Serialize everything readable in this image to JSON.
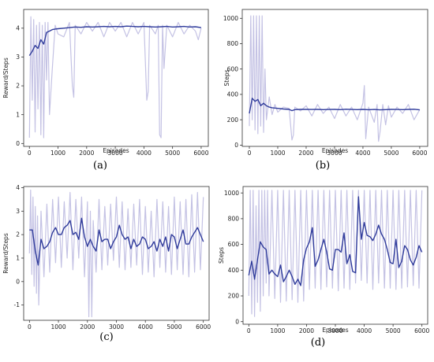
{
  "colors": {
    "raw": "#c4c2e4",
    "smooth": "#2f3b9b",
    "axis": "#333333",
    "text": "#222222"
  },
  "chart_data": [
    {
      "type": "line",
      "caption": "(a)",
      "xlabel": "Episodes",
      "ylabel": "Reward/Steps",
      "xlim": [
        -200,
        6250
      ],
      "ylim": [
        -0.1,
        4.65
      ],
      "xticks": [
        0,
        1000,
        2000,
        3000,
        4000,
        5000,
        6000
      ],
      "yticks": [
        0,
        1,
        2,
        3,
        4
      ],
      "series": [
        {
          "role": "smoothed",
          "x": [
            0,
            100,
            200,
            300,
            400,
            500,
            600,
            700,
            800,
            900,
            1000,
            1200,
            1400,
            1600,
            1800,
            2000,
            2200,
            2400,
            2600,
            2800,
            3000,
            3200,
            3400,
            3600,
            3800,
            4000,
            4200,
            4400,
            4600,
            4800,
            5000,
            5200,
            5400,
            5600,
            5800,
            6000
          ],
          "y": [
            3.05,
            3.2,
            3.4,
            3.3,
            3.6,
            3.45,
            3.85,
            3.9,
            3.95,
            3.97,
            3.98,
            4.0,
            4.02,
            4.04,
            4.03,
            4.05,
            4.04,
            4.05,
            4.06,
            4.05,
            4.06,
            4.05,
            4.07,
            4.06,
            4.05,
            4.06,
            4.05,
            4.04,
            4.05,
            4.06,
            4.04,
            4.05,
            4.06,
            4.04,
            4.05,
            4.02
          ]
        },
        {
          "role": "raw",
          "x": [
            0,
            50,
            100,
            150,
            200,
            250,
            300,
            350,
            400,
            450,
            500,
            550,
            600,
            650,
            700,
            800,
            900,
            1000,
            1200,
            1400,
            1500,
            1550,
            1600,
            1800,
            2000,
            2200,
            2400,
            2600,
            2800,
            3000,
            3200,
            3400,
            3600,
            3800,
            4000,
            4100,
            4150,
            4200,
            4400,
            4500,
            4550,
            4600,
            4650,
            4700,
            4800,
            5000,
            5200,
            5400,
            5600,
            5800,
            5900,
            6000
          ],
          "y": [
            0.2,
            4.4,
            1.5,
            4.3,
            0.4,
            4.1,
            1.2,
            4.2,
            0.3,
            4.1,
            0.2,
            4.2,
            2.2,
            4.2,
            1.0,
            2.6,
            4.1,
            3.8,
            3.7,
            4.2,
            2.0,
            1.6,
            4.1,
            3.8,
            4.2,
            3.9,
            4.2,
            3.7,
            4.2,
            3.9,
            4.2,
            3.7,
            4.2,
            3.8,
            4.2,
            1.5,
            1.8,
            4.1,
            3.8,
            4.1,
            0.3,
            0.2,
            4.1,
            2.6,
            4.1,
            3.7,
            4.2,
            3.8,
            4.1,
            3.9,
            3.6,
            4.0
          ]
        }
      ]
    },
    {
      "type": "line",
      "caption": "(b)",
      "xlabel": "Episodes",
      "ylabel": "Steps",
      "xlim": [
        -250,
        6280
      ],
      "ylim": [
        -10,
        1070
      ],
      "xticks": [
        0,
        1000,
        2000,
        3000,
        4000,
        5000,
        6000
      ],
      "yticks": [
        0,
        200,
        400,
        600,
        800,
        1000
      ],
      "series": [
        {
          "role": "smoothed",
          "x": [
            0,
            100,
            200,
            300,
            400,
            500,
            600,
            700,
            800,
            900,
            1000,
            1200,
            1400,
            1500,
            1600,
            1800,
            2000,
            2200,
            2400,
            2600,
            2800,
            3000,
            3200,
            3400,
            3600,
            3800,
            4000,
            4200,
            4400,
            4600,
            4800,
            5000,
            5200,
            5400,
            5600,
            5800,
            6000
          ],
          "y": [
            250,
            370,
            345,
            360,
            310,
            330,
            310,
            300,
            295,
            292,
            290,
            285,
            282,
            272,
            280,
            282,
            282,
            281,
            282,
            280,
            281,
            282,
            280,
            283,
            281,
            280,
            282,
            279,
            281,
            278,
            280,
            282,
            281,
            280,
            282,
            283,
            278
          ]
        },
        {
          "role": "raw",
          "x": [
            0,
            50,
            100,
            150,
            200,
            250,
            300,
            350,
            400,
            450,
            500,
            550,
            600,
            700,
            800,
            900,
            1000,
            1200,
            1400,
            1500,
            1550,
            1600,
            1800,
            2000,
            2200,
            2400,
            2600,
            2800,
            3000,
            3200,
            3400,
            3600,
            3800,
            4000,
            4050,
            4100,
            4200,
            4400,
            4500,
            4550,
            4600,
            4700,
            4800,
            4900,
            5000,
            5200,
            5400,
            5600,
            5800,
            6000
          ],
          "y": [
            150,
            1020,
            200,
            1020,
            120,
            1020,
            90,
            1020,
            150,
            1020,
            100,
            600,
            200,
            380,
            240,
            320,
            260,
            300,
            290,
            40,
            80,
            300,
            270,
            310,
            230,
            320,
            250,
            300,
            210,
            320,
            230,
            300,
            200,
            330,
            470,
            50,
            300,
            180,
            320,
            30,
            100,
            320,
            160,
            310,
            220,
            300,
            250,
            320,
            200,
            280
          ]
        }
      ]
    },
    {
      "type": "line",
      "caption": "(c)",
      "xlabel": "",
      "ylabel": "Reward/Steps",
      "xlim": [
        -200,
        6200
      ],
      "ylim": [
        -1.65,
        4.05
      ],
      "xticks": [
        0,
        1000,
        2000,
        3000,
        4000,
        5000,
        6000
      ],
      "yticks": [
        -1,
        0,
        1,
        2,
        3,
        4
      ],
      "series": [
        {
          "role": "smoothed",
          "x": [
            0,
            100,
            200,
            300,
            400,
            500,
            600,
            700,
            800,
            900,
            1000,
            1100,
            1200,
            1300,
            1400,
            1500,
            1600,
            1700,
            1800,
            1900,
            2000,
            2100,
            2200,
            2300,
            2400,
            2500,
            2600,
            2700,
            2800,
            2900,
            3000,
            3100,
            3200,
            3300,
            3400,
            3500,
            3600,
            3700,
            3800,
            3900,
            4000,
            4100,
            4200,
            4300,
            4400,
            4500,
            4600,
            4700,
            4800,
            4900,
            5000,
            5100,
            5200,
            5300,
            5400,
            5500,
            5600,
            5700,
            5800,
            5900,
            6000
          ],
          "y": [
            2.2,
            2.2,
            1.3,
            0.7,
            1.8,
            1.4,
            1.5,
            1.7,
            2.1,
            2.3,
            2.0,
            2.0,
            2.3,
            2.4,
            2.6,
            2.0,
            2.1,
            1.8,
            2.7,
            1.9,
            1.5,
            1.8,
            1.5,
            1.3,
            2.2,
            1.7,
            1.8,
            1.8,
            1.4,
            1.7,
            1.9,
            2.4,
            2.0,
            1.8,
            1.9,
            1.4,
            1.8,
            1.5,
            1.6,
            1.9,
            1.8,
            1.4,
            1.5,
            1.7,
            1.3,
            1.8,
            1.5,
            1.9,
            1.3,
            2.0,
            1.9,
            1.4,
            1.8,
            2.2,
            1.6,
            1.6,
            1.9,
            2.1,
            2.3,
            2.0,
            1.7
          ]
        },
        {
          "role": "raw",
          "x": [
            0,
            40,
            80,
            120,
            160,
            200,
            240,
            280,
            320,
            400,
            500,
            600,
            700,
            800,
            900,
            1000,
            1100,
            1200,
            1300,
            1400,
            1500,
            1600,
            1700,
            1800,
            1900,
            2000,
            2050,
            2100,
            2150,
            2200,
            2300,
            2400,
            2500,
            2600,
            2700,
            2800,
            2900,
            3000,
            3100,
            3200,
            3300,
            3400,
            3500,
            3600,
            3700,
            3800,
            3900,
            4000,
            4100,
            4200,
            4300,
            4400,
            4500,
            4600,
            4700,
            4800,
            4900,
            5000,
            5100,
            5200,
            5300,
            5400,
            5500,
            5600,
            5700,
            5800,
            5900,
            6000
          ],
          "y": [
            1.2,
            3.9,
            0.3,
            3.6,
            -0.2,
            3.2,
            -0.5,
            2.8,
            -1.0,
            3.0,
            0.2,
            3.3,
            0.4,
            3.5,
            0.8,
            3.6,
            0.6,
            3.4,
            1.0,
            3.8,
            0.5,
            3.5,
            1.0,
            3.6,
            0.2,
            3.4,
            -1.5,
            3.0,
            -1.5,
            2.6,
            0.4,
            3.5,
            0.5,
            3.2,
            0.7,
            3.3,
            0.9,
            3.6,
            0.6,
            3.4,
            0.5,
            3.1,
            0.6,
            3.3,
            0.7,
            3.5,
            0.3,
            3.2,
            0.4,
            3.0,
            0.2,
            3.5,
            0.6,
            3.4,
            0.4,
            3.2,
            0.3,
            3.6,
            0.5,
            3.4,
            0.3,
            3.5,
            0.2,
            3.7,
            0.4,
            3.8,
            0.5,
            3.6
          ]
        }
      ]
    },
    {
      "type": "line",
      "caption": "(d)",
      "xlabel": "Episodes",
      "ylabel": "Steps",
      "xlim": [
        -200,
        6200
      ],
      "ylim": [
        -20,
        1050
      ],
      "xticks": [
        0,
        1000,
        2000,
        3000,
        4000,
        5000,
        6000
      ],
      "yticks": [
        0,
        200,
        400,
        600,
        800,
        1000
      ],
      "series": [
        {
          "role": "smoothed",
          "x": [
            0,
            100,
            200,
            300,
            400,
            500,
            600,
            700,
            800,
            900,
            1000,
            1100,
            1200,
            1300,
            1400,
            1500,
            1600,
            1700,
            1800,
            1900,
            2000,
            2100,
            2200,
            2300,
            2400,
            2500,
            2600,
            2700,
            2800,
            2900,
            3000,
            3100,
            3200,
            3300,
            3400,
            3500,
            3600,
            3700,
            3800,
            3900,
            4000,
            4100,
            4200,
            4300,
            4400,
            4500,
            4600,
            4700,
            4800,
            4900,
            5000,
            5100,
            5200,
            5300,
            5400,
            5500,
            5600,
            5700,
            5800,
            5900,
            6000
          ],
          "y": [
            360,
            470,
            330,
            480,
            620,
            580,
            560,
            370,
            400,
            370,
            350,
            440,
            310,
            350,
            400,
            350,
            290,
            330,
            280,
            480,
            570,
            620,
            730,
            430,
            480,
            560,
            640,
            540,
            410,
            400,
            560,
            560,
            540,
            690,
            450,
            520,
            390,
            380,
            970,
            640,
            770,
            670,
            660,
            630,
            680,
            750,
            680,
            640,
            560,
            460,
            450,
            640,
            420,
            470,
            590,
            560,
            480,
            440,
            500,
            590,
            540
          ]
        },
        {
          "role": "raw",
          "x": [
            0,
            50,
            100,
            150,
            200,
            250,
            300,
            350,
            400,
            450,
            500,
            550,
            600,
            650,
            700,
            800,
            900,
            1000,
            1100,
            1200,
            1300,
            1400,
            1500,
            1600,
            1700,
            1800,
            1900,
            2000,
            2100,
            2200,
            2300,
            2400,
            2500,
            2600,
            2700,
            2800,
            2900,
            3000,
            3100,
            3200,
            3300,
            3400,
            3500,
            3600,
            3700,
            3800,
            3900,
            4000,
            4100,
            4200,
            4300,
            4400,
            4500,
            4600,
            4700,
            4800,
            4900,
            5000,
            5100,
            5200,
            5300,
            5400,
            5500,
            5600,
            5700,
            5800,
            5900,
            6000
          ],
          "y": [
            200,
            1020,
            60,
            1020,
            40,
            900,
            150,
            1020,
            80,
            1020,
            200,
            1020,
            300,
            1020,
            200,
            1020,
            180,
            1020,
            150,
            1020,
            160,
            1020,
            170,
            1020,
            150,
            1020,
            160,
            1020,
            250,
            1020,
            260,
            1020,
            250,
            1020,
            270,
            1020,
            260,
            1020,
            240,
            1020,
            260,
            1020,
            250,
            1020,
            300,
            1020,
            320,
            1020,
            300,
            1020,
            250,
            1020,
            300,
            1020,
            260,
            1020,
            260,
            1020,
            250,
            1020,
            260,
            1020,
            270,
            1020,
            280,
            1020,
            260,
            1020
          ]
        }
      ]
    }
  ]
}
